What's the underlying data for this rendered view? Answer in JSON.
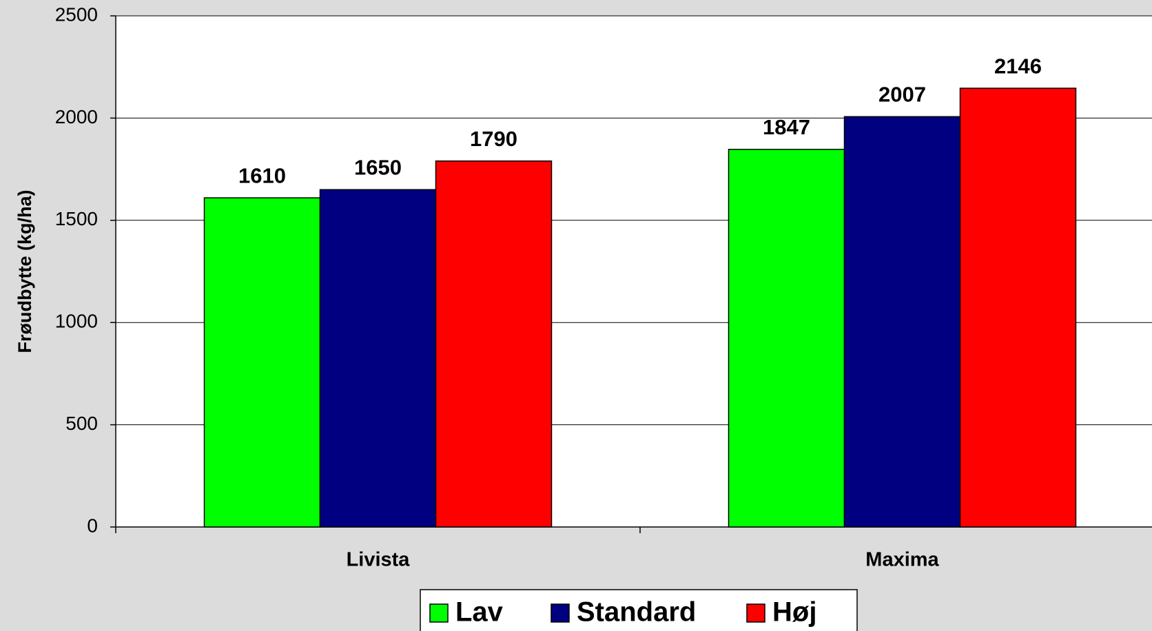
{
  "chart_data": {
    "type": "bar",
    "y_label": "Frøudbytte (kg/ha)",
    "categories": [
      "Livista",
      "Maxima"
    ],
    "series": [
      {
        "name": "Lav",
        "color": "#00ff00",
        "values": [
          1610,
          1847
        ]
      },
      {
        "name": "Standard",
        "color": "#000080",
        "values": [
          1650,
          2007
        ]
      },
      {
        "name": "Høj",
        "color": "#ff0000",
        "values": [
          1790,
          2146
        ]
      }
    ],
    "ylim": [
      0,
      2500
    ],
    "yticks": [
      0,
      500,
      1000,
      1500,
      2000,
      2500
    ],
    "grid": true,
    "legend": "bottom"
  }
}
